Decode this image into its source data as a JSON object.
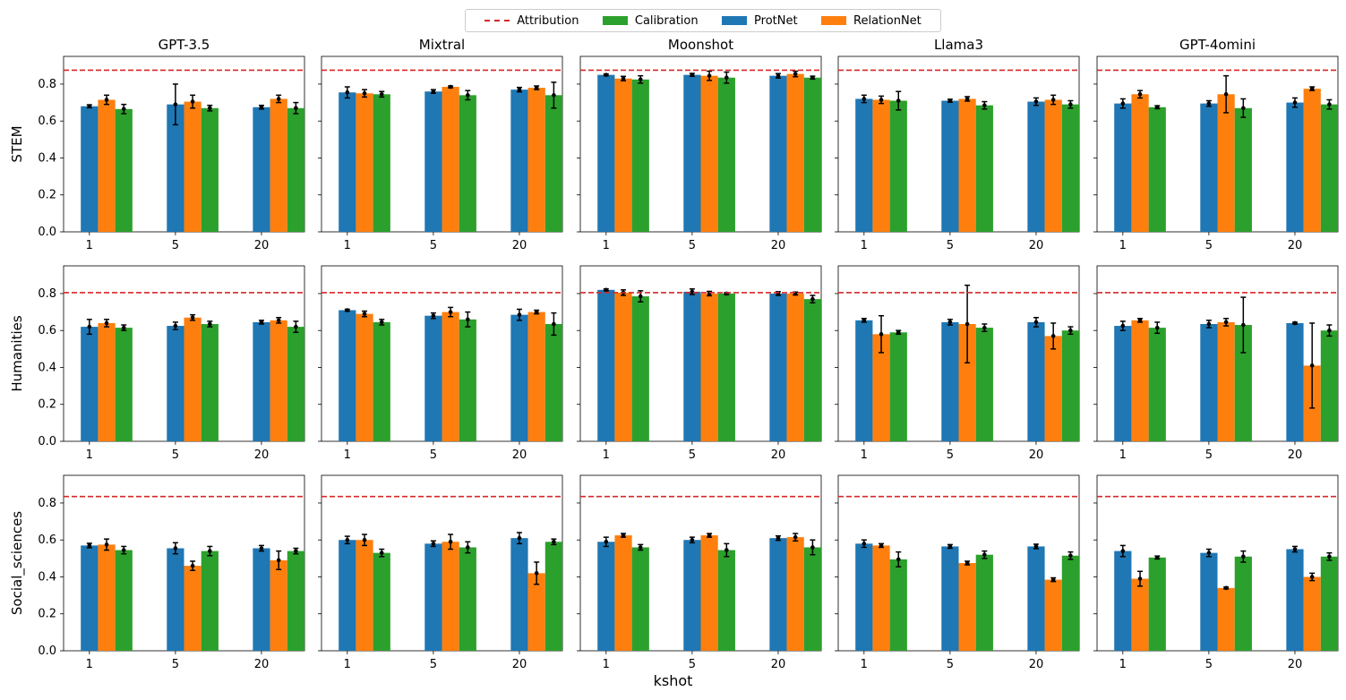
{
  "chart_data": {
    "type": "bar",
    "xlabel": "kshot",
    "x_ticks": [
      "1",
      "5",
      "20"
    ],
    "y_ticks": [
      "0.0",
      "0.2",
      "0.4",
      "0.6",
      "0.8"
    ],
    "ylim": [
      0,
      0.95
    ],
    "colors": {
      "ProtNet": "#1f77b4",
      "RelationNet": "#ff7f0e",
      "Calibration": "#2ca02c",
      "Attribution": "#d62728",
      "error": "#000000"
    },
    "legend": [
      {
        "name": "Attribution",
        "kind": "line"
      },
      {
        "name": "Calibration",
        "kind": "bar"
      },
      {
        "name": "ProtNet",
        "kind": "bar"
      },
      {
        "name": "RelationNet",
        "kind": "bar"
      }
    ],
    "series_order": [
      "ProtNet",
      "RelationNet",
      "Calibration"
    ],
    "models": [
      "GPT-3.5",
      "Mixtral",
      "Moonshot",
      "Llama3",
      "GPT-4omini"
    ],
    "domains": [
      "STEM",
      "Humanities",
      "Social_sciences"
    ],
    "attribution": {
      "STEM": 0.875,
      "Humanities": 0.805,
      "Social_sciences": 0.835
    },
    "panels": [
      {
        "model": "GPT-3.5",
        "domain": "STEM",
        "values": {
          "ProtNet": [
            0.68,
            0.69,
            0.675
          ],
          "RelationNet": [
            0.715,
            0.705,
            0.72
          ],
          "Calibration": [
            0.665,
            0.67,
            0.67
          ]
        },
        "errors": {
          "ProtNet": [
            0.008,
            0.11,
            0.01
          ],
          "RelationNet": [
            0.025,
            0.035,
            0.02
          ],
          "Calibration": [
            0.025,
            0.015,
            0.03
          ]
        }
      },
      {
        "model": "Mixtral",
        "domain": "STEM",
        "values": {
          "ProtNet": [
            0.755,
            0.76,
            0.77
          ],
          "RelationNet": [
            0.75,
            0.785,
            0.78
          ],
          "Calibration": [
            0.745,
            0.74,
            0.74
          ]
        },
        "errors": {
          "ProtNet": [
            0.03,
            0.01,
            0.012
          ],
          "RelationNet": [
            0.02,
            0.005,
            0.01
          ],
          "Calibration": [
            0.015,
            0.025,
            0.07
          ]
        }
      },
      {
        "model": "Moonshot",
        "domain": "STEM",
        "values": {
          "ProtNet": [
            0.85,
            0.85,
            0.845
          ],
          "RelationNet": [
            0.83,
            0.845,
            0.855
          ],
          "Calibration": [
            0.825,
            0.835,
            0.835
          ]
        },
        "errors": {
          "ProtNet": [
            0.005,
            0.008,
            0.012
          ],
          "RelationNet": [
            0.012,
            0.025,
            0.015
          ],
          "Calibration": [
            0.02,
            0.03,
            0.008
          ]
        }
      },
      {
        "model": "Llama3",
        "domain": "STEM",
        "values": {
          "ProtNet": [
            0.72,
            0.71,
            0.705
          ],
          "RelationNet": [
            0.715,
            0.72,
            0.715
          ],
          "Calibration": [
            0.71,
            0.685,
            0.69
          ]
        },
        "errors": {
          "ProtNet": [
            0.02,
            0.008,
            0.02
          ],
          "RelationNet": [
            0.02,
            0.012,
            0.025
          ],
          "Calibration": [
            0.05,
            0.02,
            0.02
          ]
        }
      },
      {
        "model": "GPT-4omini",
        "domain": "STEM",
        "values": {
          "ProtNet": [
            0.695,
            0.695,
            0.7
          ],
          "RelationNet": [
            0.745,
            0.745,
            0.775
          ],
          "Calibration": [
            0.675,
            0.67,
            0.69
          ]
        },
        "errors": {
          "ProtNet": [
            0.025,
            0.015,
            0.025
          ],
          "RelationNet": [
            0.02,
            0.1,
            0.01
          ],
          "Calibration": [
            0.008,
            0.05,
            0.025
          ]
        }
      },
      {
        "model": "GPT-3.5",
        "domain": "Humanities",
        "values": {
          "ProtNet": [
            0.62,
            0.625,
            0.645
          ],
          "RelationNet": [
            0.64,
            0.67,
            0.655
          ],
          "Calibration": [
            0.615,
            0.635,
            0.62
          ]
        },
        "errors": {
          "ProtNet": [
            0.04,
            0.02,
            0.01
          ],
          "RelationNet": [
            0.02,
            0.015,
            0.015
          ],
          "Calibration": [
            0.015,
            0.015,
            0.03
          ]
        }
      },
      {
        "model": "Mixtral",
        "domain": "Humanities",
        "values": {
          "ProtNet": [
            0.71,
            0.68,
            0.685
          ],
          "RelationNet": [
            0.69,
            0.7,
            0.7
          ],
          "Calibration": [
            0.645,
            0.66,
            0.635
          ]
        },
        "errors": {
          "ProtNet": [
            0.005,
            0.015,
            0.03
          ],
          "RelationNet": [
            0.015,
            0.025,
            0.01
          ],
          "Calibration": [
            0.015,
            0.04,
            0.06
          ]
        }
      },
      {
        "model": "Moonshot",
        "domain": "Humanities",
        "values": {
          "ProtNet": [
            0.82,
            0.81,
            0.8
          ],
          "RelationNet": [
            0.805,
            0.8,
            0.8
          ],
          "Calibration": [
            0.785,
            0.8,
            0.77
          ]
        },
        "errors": {
          "ProtNet": [
            0.005,
            0.015,
            0.01
          ],
          "RelationNet": [
            0.015,
            0.012,
            0.008
          ],
          "Calibration": [
            0.03,
            0.005,
            0.02
          ]
        }
      },
      {
        "model": "Llama3",
        "domain": "Humanities",
        "values": {
          "ProtNet": [
            0.655,
            0.645,
            0.645
          ],
          "RelationNet": [
            0.58,
            0.635,
            0.57
          ],
          "Calibration": [
            0.59,
            0.615,
            0.6
          ]
        },
        "errors": {
          "ProtNet": [
            0.01,
            0.015,
            0.025
          ],
          "RelationNet": [
            0.1,
            0.21,
            0.07
          ],
          "Calibration": [
            0.01,
            0.02,
            0.02
          ]
        }
      },
      {
        "model": "GPT-4omini",
        "domain": "Humanities",
        "values": {
          "ProtNet": [
            0.625,
            0.635,
            0.64
          ],
          "RelationNet": [
            0.655,
            0.645,
            0.41
          ],
          "Calibration": [
            0.615,
            0.63,
            0.6
          ]
        },
        "errors": {
          "ProtNet": [
            0.025,
            0.02,
            0.005
          ],
          "RelationNet": [
            0.01,
            0.02,
            0.23
          ],
          "Calibration": [
            0.03,
            0.15,
            0.03
          ]
        }
      },
      {
        "model": "GPT-3.5",
        "domain": "Social_sciences",
        "values": {
          "ProtNet": [
            0.57,
            0.555,
            0.555
          ],
          "RelationNet": [
            0.575,
            0.46,
            0.49
          ],
          "Calibration": [
            0.545,
            0.54,
            0.54
          ]
        },
        "errors": {
          "ProtNet": [
            0.012,
            0.03,
            0.015
          ],
          "RelationNet": [
            0.03,
            0.025,
            0.05
          ],
          "Calibration": [
            0.02,
            0.025,
            0.015
          ]
        }
      },
      {
        "model": "Mixtral",
        "domain": "Social_sciences",
        "values": {
          "ProtNet": [
            0.6,
            0.58,
            0.61
          ],
          "RelationNet": [
            0.6,
            0.59,
            0.42
          ],
          "Calibration": [
            0.53,
            0.56,
            0.59
          ]
        },
        "errors": {
          "ProtNet": [
            0.02,
            0.015,
            0.03
          ],
          "RelationNet": [
            0.03,
            0.04,
            0.06
          ],
          "Calibration": [
            0.02,
            0.03,
            0.015
          ]
        }
      },
      {
        "model": "Moonshot",
        "domain": "Social_sciences",
        "values": {
          "ProtNet": [
            0.59,
            0.6,
            0.61
          ],
          "RelationNet": [
            0.625,
            0.625,
            0.615
          ],
          "Calibration": [
            0.56,
            0.545,
            0.56
          ]
        },
        "errors": {
          "ProtNet": [
            0.025,
            0.015,
            0.012
          ],
          "RelationNet": [
            0.01,
            0.01,
            0.02
          ],
          "Calibration": [
            0.015,
            0.035,
            0.04
          ]
        }
      },
      {
        "model": "Llama3",
        "domain": "Social_sciences",
        "values": {
          "ProtNet": [
            0.58,
            0.565,
            0.565
          ],
          "RelationNet": [
            0.57,
            0.475,
            0.385
          ],
          "Calibration": [
            0.495,
            0.52,
            0.515
          ]
        },
        "errors": {
          "ProtNet": [
            0.02,
            0.01,
            0.012
          ],
          "RelationNet": [
            0.01,
            0.01,
            0.01
          ],
          "Calibration": [
            0.04,
            0.02,
            0.02
          ]
        }
      },
      {
        "model": "GPT-4omini",
        "domain": "Social_sciences",
        "values": {
          "ProtNet": [
            0.54,
            0.53,
            0.55
          ],
          "RelationNet": [
            0.39,
            0.34,
            0.4
          ],
          "Calibration": [
            0.505,
            0.51,
            0.51
          ]
        },
        "errors": {
          "ProtNet": [
            0.03,
            0.02,
            0.015
          ],
          "RelationNet": [
            0.04,
            0.005,
            0.02
          ],
          "Calibration": [
            0.008,
            0.03,
            0.02
          ]
        }
      }
    ]
  }
}
